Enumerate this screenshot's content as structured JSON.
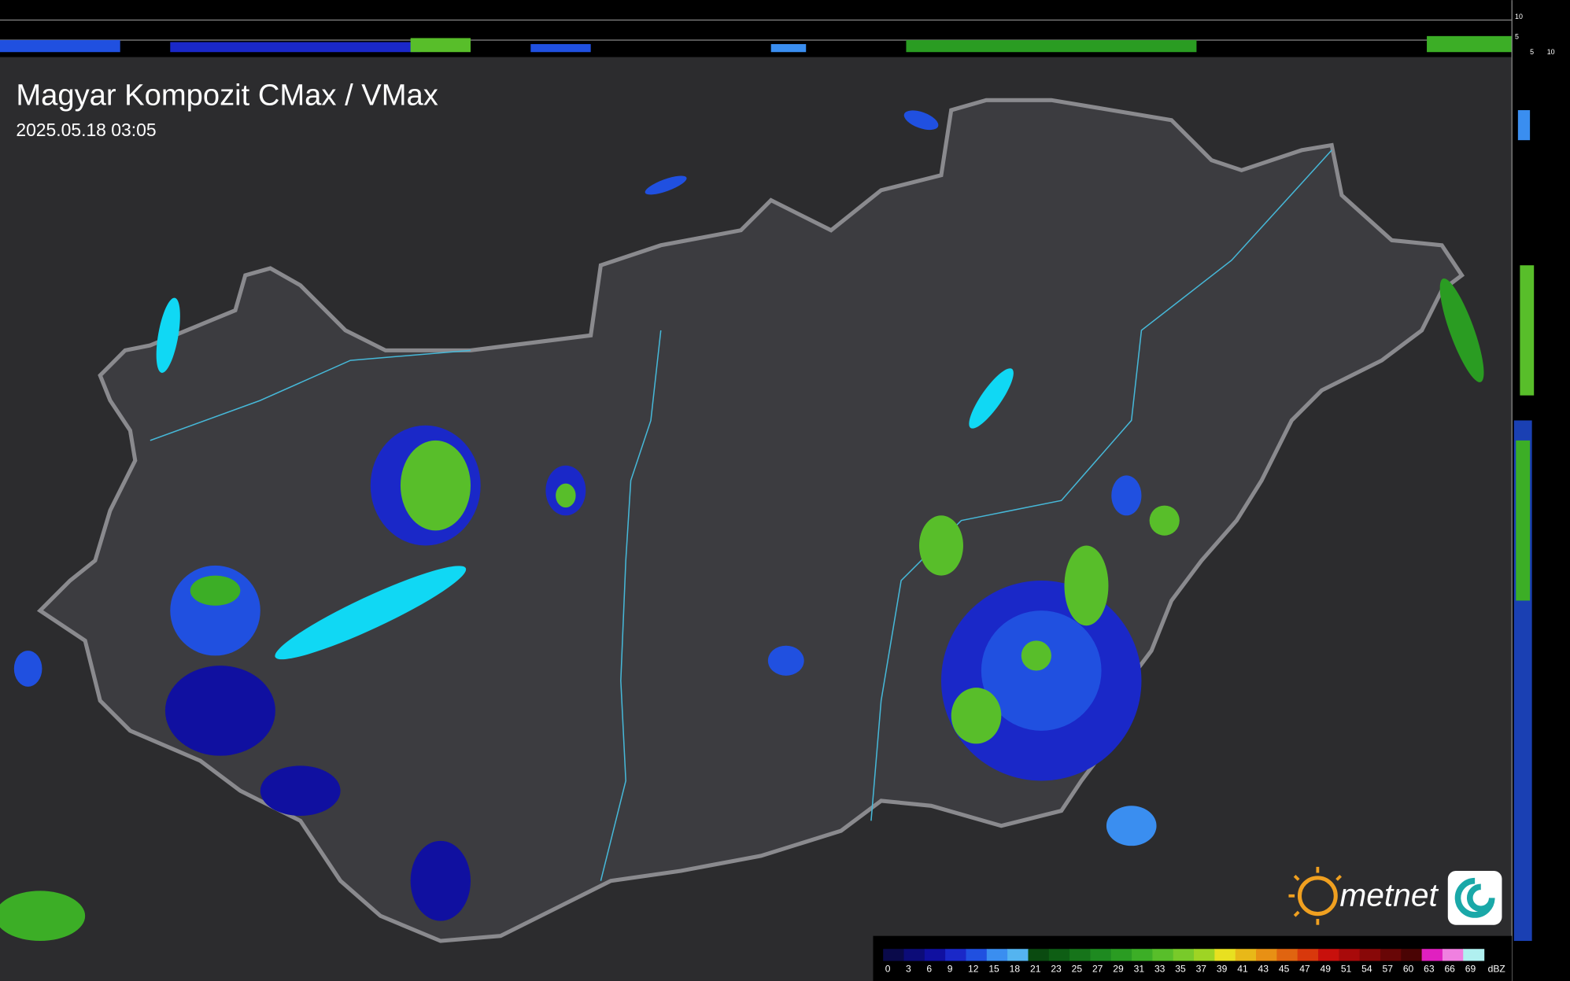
{
  "header": {
    "title": "Magyar Kompozit CMax / VMax",
    "timestamp": "2025.05.18 03:05"
  },
  "logo": "metnet",
  "side_axis": {
    "top": [
      "10",
      "5"
    ],
    "right": [
      "5",
      "10"
    ]
  },
  "legend": {
    "unit": "dBZ",
    "steps": [
      {
        "label": "0",
        "color": "#0a0a4a"
      },
      {
        "label": "3",
        "color": "#0c0c78"
      },
      {
        "label": "6",
        "color": "#1010a0"
      },
      {
        "label": "9",
        "color": "#1a28c8"
      },
      {
        "label": "12",
        "color": "#2050e0"
      },
      {
        "label": "15",
        "color": "#3a8ef0"
      },
      {
        "label": "18",
        "color": "#54b4f0"
      },
      {
        "label": "21",
        "color": "#0a4a10"
      },
      {
        "label": "23",
        "color": "#0e5e14"
      },
      {
        "label": "25",
        "color": "#16741a"
      },
      {
        "label": "27",
        "color": "#1e8a20"
      },
      {
        "label": "29",
        "color": "#2a9c22"
      },
      {
        "label": "31",
        "color": "#3cae26"
      },
      {
        "label": "33",
        "color": "#58be2a"
      },
      {
        "label": "35",
        "color": "#78ca2a"
      },
      {
        "label": "37",
        "color": "#9ed424"
      },
      {
        "label": "39",
        "color": "#e8e020"
      },
      {
        "label": "41",
        "color": "#e8b818"
      },
      {
        "label": "43",
        "color": "#e89014"
      },
      {
        "label": "45",
        "color": "#e06410"
      },
      {
        "label": "47",
        "color": "#d8380c"
      },
      {
        "label": "49",
        "color": "#c8100c"
      },
      {
        "label": "51",
        "color": "#a80a0a"
      },
      {
        "label": "54",
        "color": "#880808"
      },
      {
        "label": "57",
        "color": "#680606"
      },
      {
        "label": "60",
        "color": "#4a0404"
      },
      {
        "label": "63",
        "color": "#e020c0"
      },
      {
        "label": "66",
        "color": "#f080e0"
      },
      {
        "label": "69",
        "color": "#b0f0f0"
      }
    ]
  }
}
